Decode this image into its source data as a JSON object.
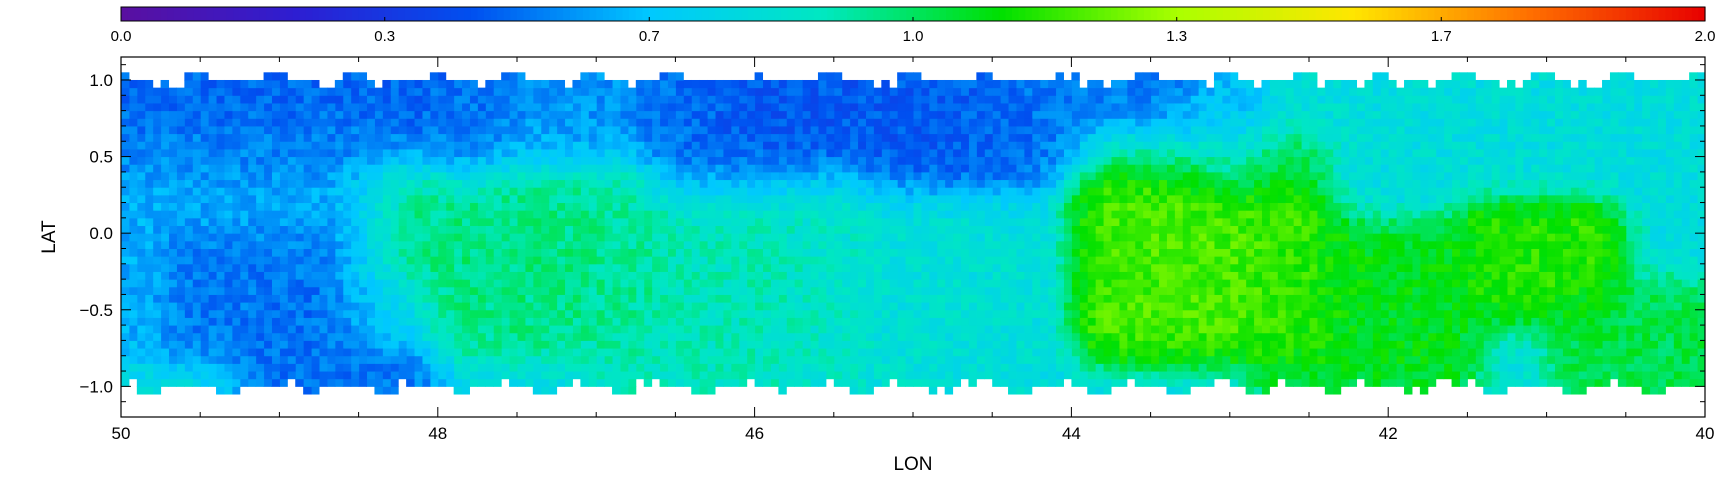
{
  "chart_data": {
    "type": "heatmap",
    "title": "",
    "xlabel": "LON",
    "ylabel": "LAT",
    "x_reversed": true,
    "xlim": [
      50,
      40
    ],
    "ylim": [
      -1.2,
      1.15
    ],
    "x_ticks": [
      "50",
      "48",
      "46",
      "44",
      "42",
      "40"
    ],
    "x_tick_values": [
      50,
      48,
      46,
      44,
      42,
      40
    ],
    "y_ticks": [
      "1.0",
      "0.5",
      "0.0",
      "−0.5",
      "−1.0"
    ],
    "y_tick_values": [
      1.0,
      0.5,
      0.0,
      -0.5,
      -1.0
    ],
    "colorbar": {
      "position": "top",
      "range": [
        0.0,
        2.0
      ],
      "tick_labels": [
        "0.0",
        "0.3",
        "0.7",
        "1.0",
        "1.3",
        "1.7",
        "2.0"
      ],
      "tick_values": [
        0.0,
        0.333,
        0.667,
        1.0,
        1.333,
        1.667,
        2.0
      ],
      "colormap": [
        "#5a0fa0",
        "#2d1ed2",
        "#0050f0",
        "#00c8ff",
        "#00e8c0",
        "#00e000",
        "#aaff00",
        "#ffe600",
        "#ff7000",
        "#e80000"
      ]
    },
    "value_regions": [
      {
        "lon": [
          50,
          47.8
        ],
        "lat": [
          0.6,
          1.05
        ],
        "value": 0.45
      },
      {
        "lon": [
          47.8,
          46.5
        ],
        "lat": [
          0.6,
          1.05
        ],
        "value": 0.55
      },
      {
        "lon": [
          46.5,
          44.5
        ],
        "lat": [
          0.45,
          1.05
        ],
        "value": 0.42
      },
      {
        "lon": [
          44.5,
          43.0
        ],
        "lat": [
          0.65,
          1.05
        ],
        "value": 0.5
      },
      {
        "lon": [
          43.0,
          40.0
        ],
        "lat": [
          0.5,
          1.05
        ],
        "value": 0.8
      },
      {
        "lon": [
          50,
          48.5
        ],
        "lat": [
          -0.5,
          0.5
        ],
        "value": 0.6
      },
      {
        "lon": [
          49.5,
          48.8
        ],
        "lat": [
          -0.5,
          -0.2
        ],
        "value": 0.42
      },
      {
        "lon": [
          49.0,
          48.3
        ],
        "lat": [
          -0.9,
          -0.55
        ],
        "value": 0.48
      },
      {
        "lon": [
          48.3,
          46.8
        ],
        "lat": [
          -0.5,
          0.3
        ],
        "value": 0.98
      },
      {
        "lon": [
          46.8,
          45.5
        ],
        "lat": [
          -0.8,
          0.2
        ],
        "value": 0.9
      },
      {
        "lon": [
          45.5,
          44.5
        ],
        "lat": [
          -0.9,
          0.1
        ],
        "value": 0.82
      },
      {
        "lon": [
          43.7,
          42.6
        ],
        "lat": [
          -0.55,
          0.45
        ],
        "value": 1.25
      },
      {
        "lon": [
          42.6,
          41.7
        ],
        "lat": [
          -0.8,
          -0.2
        ],
        "value": 1.12
      },
      {
        "lon": [
          41.3,
          40.8
        ],
        "lat": [
          -0.3,
          0.0
        ],
        "value": 1.2
      },
      {
        "lon": [
          40.7,
          40.0
        ],
        "lat": [
          -1.05,
          -0.6
        ],
        "value": 1.05
      }
    ],
    "grid": false,
    "legend": "none"
  }
}
